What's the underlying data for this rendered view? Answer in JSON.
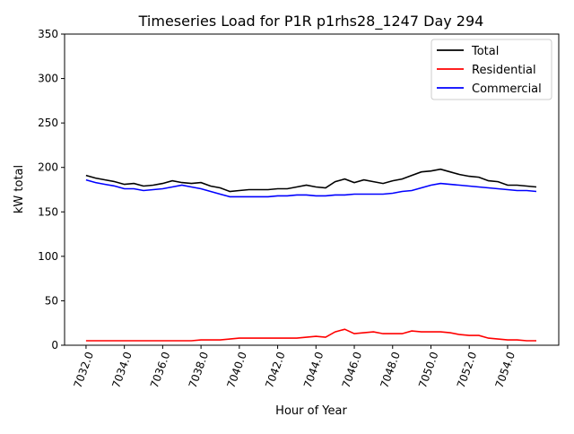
{
  "chart_data": {
    "type": "line",
    "title": "Timeseries Load for P1R p1rhs28_1247  Day 294",
    "xlabel": "Hour of Year",
    "ylabel": "kW total",
    "xlim": [
      7030.88,
      7056.67
    ],
    "ylim": [
      0,
      350
    ],
    "xticks": [
      "7032.0",
      "7034.0",
      "7036.0",
      "7038.0",
      "7040.0",
      "7042.0",
      "7044.0",
      "7046.0",
      "7048.0",
      "7050.0",
      "7052.0",
      "7054.0"
    ],
    "xtick_values": [
      7032,
      7034,
      7036,
      7038,
      7040,
      7042,
      7044,
      7046,
      7048,
      7050,
      7052,
      7054
    ],
    "yticks": [
      "0",
      "50",
      "100",
      "150",
      "200",
      "250",
      "300",
      "350"
    ],
    "ytick_values": [
      0,
      50,
      100,
      150,
      200,
      250,
      300,
      350
    ],
    "grid": false,
    "legend_position": "top-right",
    "x": [
      7032,
      7032.5,
      7033,
      7033.5,
      7034,
      7034.5,
      7035,
      7035.5,
      7036,
      7036.5,
      7037,
      7037.5,
      7038,
      7038.5,
      7039,
      7039.5,
      7040,
      7040.5,
      7041,
      7041.5,
      7042,
      7042.5,
      7043,
      7043.5,
      7044,
      7044.5,
      7045,
      7045.5,
      7046,
      7046.5,
      7047,
      7047.5,
      7048,
      7048.5,
      7049,
      7049.5,
      7050,
      7050.5,
      7051,
      7051.5,
      7052,
      7052.5,
      7053,
      7053.5,
      7054,
      7054.5,
      7055,
      7055.5
    ],
    "series": [
      {
        "name": "Total",
        "color": "#000000",
        "values": [
          191,
          188,
          186,
          184,
          181,
          182,
          179,
          180,
          182,
          185,
          183,
          182,
          183,
          179,
          177,
          173,
          174,
          175,
          175,
          175,
          176,
          176,
          178,
          180,
          178,
          177,
          184,
          187,
          183,
          186,
          184,
          182,
          185,
          187,
          191,
          195,
          196,
          198,
          195,
          192,
          190,
          189,
          185,
          184,
          180,
          180,
          179,
          178
        ]
      },
      {
        "name": "Residential",
        "color": "#ff0000",
        "values": [
          5,
          5,
          5,
          5,
          5,
          5,
          5,
          5,
          5,
          5,
          5,
          5,
          6,
          6,
          6,
          7,
          8,
          8,
          8,
          8,
          8,
          8,
          8,
          9,
          10,
          9,
          15,
          18,
          13,
          14,
          15,
          13,
          13,
          13,
          16,
          15,
          15,
          15,
          14,
          12,
          11,
          11,
          8,
          7,
          6,
          6,
          5,
          5
        ]
      },
      {
        "name": "Commercial",
        "color": "#0000ff",
        "values": [
          186,
          183,
          181,
          179,
          176,
          176,
          174,
          175,
          176,
          178,
          180,
          178,
          176,
          173,
          170,
          167,
          167,
          167,
          167,
          167,
          168,
          168,
          169,
          169,
          168,
          168,
          169,
          169,
          170,
          170,
          170,
          170,
          171,
          173,
          174,
          177,
          180,
          182,
          181,
          180,
          179,
          178,
          177,
          176,
          175,
          174,
          174,
          173
        ]
      }
    ]
  }
}
